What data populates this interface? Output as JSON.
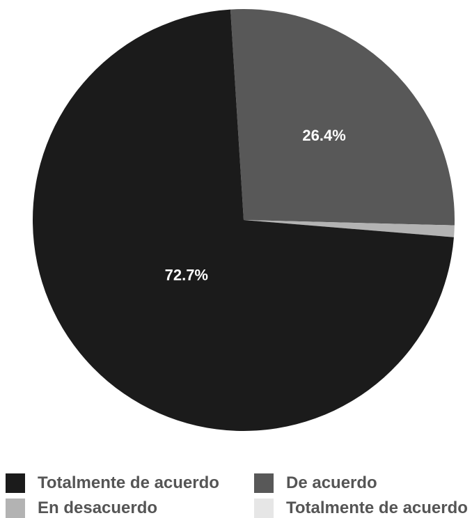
{
  "chart_data": {
    "type": "pie",
    "title": "",
    "slices": [
      {
        "label": "De acuerdo",
        "value": 26.4,
        "color": "#585858",
        "value_label": "26.4%"
      },
      {
        "label": "En desacuerdo",
        "value": 0.9,
        "color": "#b3b3b3",
        "value_label": ""
      },
      {
        "label": "Totalmente de acuerdo",
        "value": 72.7,
        "color": "#1b1b1b",
        "value_label": "72.7%"
      }
    ],
    "legend": {
      "placement": "bottom",
      "entries": [
        {
          "label": "Totalmente de acuerdo",
          "color": "#1b1b1b"
        },
        {
          "label": "De acuerdo",
          "color": "#585858"
        },
        {
          "label": "En desacuerdo",
          "color": "#b3b3b3"
        },
        {
          "label": "Totalmente de acuerdo",
          "color": "#e6e6e6"
        }
      ]
    }
  }
}
